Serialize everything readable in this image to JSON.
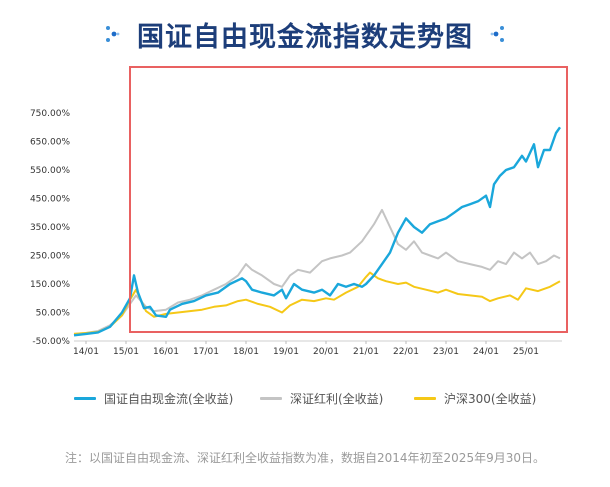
{
  "header": {
    "title": "国证自由现金流指数走势图"
  },
  "colors": {
    "fcf": "#1aa7db",
    "dividend": "#c4c4c4",
    "hs300": "#f5c817",
    "highlight_box": "#e96161",
    "title": "#1d3e7a"
  },
  "legend": {
    "items": [
      {
        "label": "国证自由现金流(全收益)"
      },
      {
        "label": "深证红利(全收益)"
      },
      {
        "label": "沪深300(全收益)"
      }
    ]
  },
  "note": "注：以国证自由现金流、深证红利全收益指数为准，数据自2014年初至2025年9月30日。",
  "chart_data": {
    "type": "line",
    "y_tick_labels": [
      "-50.00%",
      "50.00%",
      "150.00%",
      "250.00%",
      "350.00%",
      "450.00%",
      "550.00%",
      "650.00%",
      "750.00%"
    ],
    "y_ticks": [
      -50,
      50,
      150,
      250,
      350,
      450,
      550,
      650,
      750
    ],
    "ylim": [
      -50,
      750
    ],
    "x_tick_labels": [
      "14/01",
      "15/01",
      "16/01",
      "17/01",
      "18/01",
      "19/01",
      "20/01",
      "21/01",
      "22/01",
      "23/01",
      "24/01",
      "25/01"
    ],
    "x_ticks": [
      2014,
      2015,
      2016,
      2017,
      2018,
      2019,
      2020,
      2021,
      2022,
      2023,
      2024,
      2025
    ],
    "xlim": [
      2013.7,
      2025.9
    ],
    "grid": false,
    "legend_position": "bottom",
    "series": [
      {
        "name": "国证自由现金流(全收益)",
        "color": "#1aa7db",
        "x": [
          2013.7,
          2014.0,
          2014.3,
          2014.6,
          2014.9,
          2015.1,
          2015.2,
          2015.3,
          2015.45,
          2015.6,
          2015.75,
          2016.0,
          2016.1,
          2016.4,
          2016.7,
          2017.0,
          2017.3,
          2017.6,
          2017.9,
          2018.0,
          2018.15,
          2018.4,
          2018.7,
          2018.9,
          2019.0,
          2019.2,
          2019.4,
          2019.7,
          2019.9,
          2020.1,
          2020.3,
          2020.5,
          2020.7,
          2020.9,
          2021.0,
          2021.2,
          2021.4,
          2021.6,
          2021.8,
          2022.0,
          2022.2,
          2022.4,
          2022.6,
          2022.8,
          2023.0,
          2023.2,
          2023.4,
          2023.6,
          2023.8,
          2024.0,
          2024.1,
          2024.2,
          2024.35,
          2024.5,
          2024.7,
          2024.9,
          2025.0,
          2025.2,
          2025.3,
          2025.45,
          2025.6,
          2025.75,
          2025.85
        ],
        "values": [
          -30,
          -25,
          -20,
          0,
          50,
          100,
          180,
          120,
          65,
          70,
          40,
          35,
          60,
          80,
          90,
          110,
          120,
          150,
          170,
          160,
          130,
          120,
          110,
          130,
          100,
          150,
          130,
          120,
          130,
          110,
          150,
          140,
          150,
          140,
          150,
          180,
          220,
          260,
          330,
          380,
          350,
          330,
          360,
          370,
          380,
          400,
          420,
          430,
          440,
          460,
          420,
          500,
          530,
          550,
          560,
          600,
          580,
          640,
          560,
          620,
          620,
          680,
          700
        ]
      },
      {
        "name": "深证红利(全收益)",
        "color": "#c4c4c4",
        "x": [
          2013.7,
          2014.0,
          2014.3,
          2014.6,
          2014.9,
          2015.1,
          2015.25,
          2015.5,
          2015.7,
          2016.0,
          2016.3,
          2016.6,
          2016.9,
          2017.2,
          2017.5,
          2017.8,
          2018.0,
          2018.15,
          2018.4,
          2018.7,
          2018.9,
          2019.1,
          2019.3,
          2019.6,
          2019.9,
          2020.1,
          2020.4,
          2020.6,
          2020.9,
          2021.0,
          2021.1,
          2021.2,
          2021.4,
          2021.6,
          2021.8,
          2022.0,
          2022.2,
          2022.4,
          2022.6,
          2022.8,
          2023.0,
          2023.3,
          2023.6,
          2023.9,
          2024.1,
          2024.3,
          2024.5,
          2024.7,
          2024.9,
          2025.1,
          2025.3,
          2025.5,
          2025.7,
          2025.85
        ],
        "values": [
          -25,
          -22,
          -15,
          5,
          40,
          80,
          110,
          70,
          55,
          60,
          85,
          95,
          110,
          130,
          150,
          180,
          220,
          200,
          180,
          150,
          140,
          180,
          200,
          190,
          230,
          240,
          250,
          260,
          300,
          320,
          340,
          360,
          410,
          350,
          290,
          270,
          300,
          260,
          250,
          240,
          260,
          230,
          220,
          210,
          200,
          230,
          220,
          260,
          240,
          260,
          220,
          230,
          250,
          240
        ]
      },
      {
        "name": "沪深300(全收益)",
        "color": "#f5c817",
        "x": [
          2013.7,
          2014.0,
          2014.3,
          2014.6,
          2014.9,
          2015.1,
          2015.25,
          2015.5,
          2015.7,
          2016.0,
          2016.3,
          2016.6,
          2016.9,
          2017.2,
          2017.5,
          2017.8,
          2018.0,
          2018.3,
          2018.6,
          2018.9,
          2019.1,
          2019.4,
          2019.7,
          2020.0,
          2020.2,
          2020.5,
          2020.8,
          2021.0,
          2021.1,
          2021.3,
          2021.5,
          2021.8,
          2022.0,
          2022.2,
          2022.5,
          2022.8,
          2023.0,
          2023.3,
          2023.6,
          2023.9,
          2024.1,
          2024.3,
          2024.6,
          2024.8,
          2025.0,
          2025.3,
          2025.6,
          2025.85
        ],
        "values": [
          -25,
          -22,
          -18,
          0,
          40,
          95,
          130,
          55,
          35,
          45,
          50,
          55,
          60,
          70,
          75,
          90,
          95,
          80,
          70,
          50,
          75,
          95,
          90,
          100,
          95,
          120,
          140,
          175,
          190,
          170,
          160,
          150,
          155,
          140,
          130,
          120,
          130,
          115,
          110,
          105,
          90,
          100,
          110,
          95,
          135,
          125,
          140,
          160
        ]
      }
    ]
  }
}
